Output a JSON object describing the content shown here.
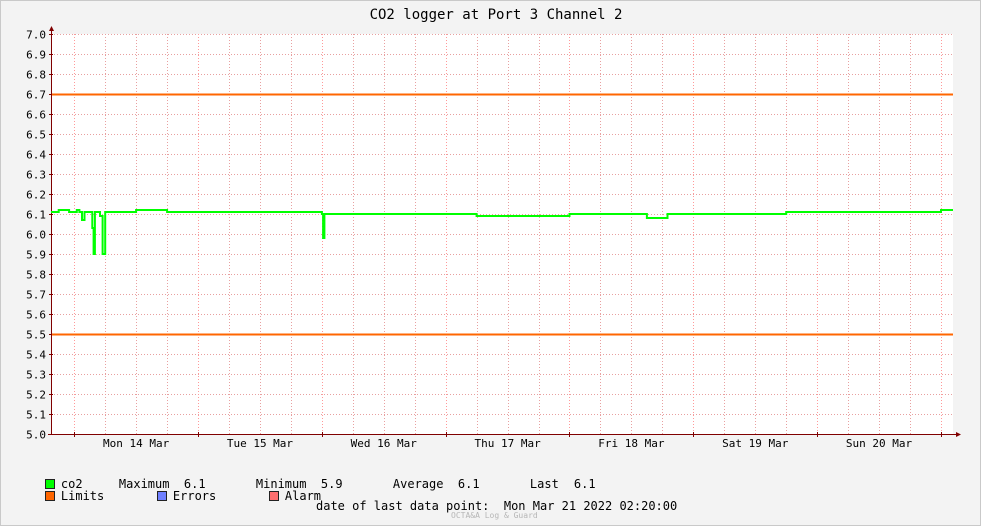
{
  "chart_data": {
    "type": "line",
    "title": "CO2 logger at Port 3 Channel 2",
    "xlabel": "",
    "ylabel": "",
    "ylim": [
      5.0,
      7.0
    ],
    "yticks": [
      "5.0",
      "5.1",
      "5.2",
      "5.3",
      "5.4",
      "5.5",
      "5.6",
      "5.7",
      "5.8",
      "5.9",
      "6.0",
      "6.1",
      "6.2",
      "6.3",
      "6.4",
      "6.5",
      "6.6",
      "6.7",
      "6.8",
      "6.9",
      "7.0"
    ],
    "xlim": [
      "2022-03-13 19:30",
      "2022-03-21 02:20"
    ],
    "xticks": [
      {
        "t": "2022-03-14 00:00",
        "label": "Mon 14 Mar"
      },
      {
        "t": "2022-03-15 00:00",
        "label": "Tue 15 Mar"
      },
      {
        "t": "2022-03-16 00:00",
        "label": "Wed 16 Mar"
      },
      {
        "t": "2022-03-17 00:00",
        "label": "Thu 17 Mar"
      },
      {
        "t": "2022-03-18 00:00",
        "label": "Fri 18 Mar"
      },
      {
        "t": "2022-03-19 00:00",
        "label": "Sat 19 Mar"
      },
      {
        "t": "2022-03-20 00:00",
        "label": "Sun 20 Mar"
      }
    ],
    "grid": true,
    "limits": [
      5.5,
      6.7
    ],
    "series": [
      {
        "name": "co2",
        "color": "#00ff00",
        "points": [
          [
            "2022-03-13 19:30",
            6.11
          ],
          [
            "2022-03-13 21:00",
            6.12
          ],
          [
            "2022-03-13 23:00",
            6.11
          ],
          [
            "2022-03-14 00:30",
            6.12
          ],
          [
            "2022-03-14 01:00",
            6.11
          ],
          [
            "2022-03-14 01:30",
            6.07
          ],
          [
            "2022-03-14 02:00",
            6.11
          ],
          [
            "2022-03-14 03:00",
            6.11
          ],
          [
            "2022-03-14 03:30",
            6.03
          ],
          [
            "2022-03-14 03:45",
            5.9
          ],
          [
            "2022-03-14 04:00",
            6.11
          ],
          [
            "2022-03-14 05:00",
            6.09
          ],
          [
            "2022-03-14 05:30",
            5.9
          ],
          [
            "2022-03-14 06:00",
            6.11
          ],
          [
            "2022-03-14 09:00",
            6.11
          ],
          [
            "2022-03-14 12:00",
            6.12
          ],
          [
            "2022-03-14 18:00",
            6.11
          ],
          [
            "2022-03-15 00:00",
            6.11
          ],
          [
            "2022-03-15 06:00",
            6.11
          ],
          [
            "2022-03-15 12:00",
            6.11
          ],
          [
            "2022-03-15 18:00",
            6.11
          ],
          [
            "2022-03-16 00:00",
            6.1
          ],
          [
            "2022-03-16 00:15",
            5.98
          ],
          [
            "2022-03-16 00:30",
            6.1
          ],
          [
            "2022-03-16 06:00",
            6.1
          ],
          [
            "2022-03-16 12:00",
            6.1
          ],
          [
            "2022-03-16 18:00",
            6.1
          ],
          [
            "2022-03-17 00:00",
            6.1
          ],
          [
            "2022-03-17 06:00",
            6.09
          ],
          [
            "2022-03-17 12:00",
            6.09
          ],
          [
            "2022-03-17 18:00",
            6.09
          ],
          [
            "2022-03-18 00:00",
            6.1
          ],
          [
            "2022-03-18 06:00",
            6.1
          ],
          [
            "2022-03-18 12:00",
            6.1
          ],
          [
            "2022-03-18 15:00",
            6.08
          ],
          [
            "2022-03-18 18:00",
            6.08
          ],
          [
            "2022-03-18 19:00",
            6.1
          ],
          [
            "2022-03-19 00:00",
            6.1
          ],
          [
            "2022-03-19 06:00",
            6.1
          ],
          [
            "2022-03-19 12:00",
            6.1
          ],
          [
            "2022-03-19 18:00",
            6.11
          ],
          [
            "2022-03-20 00:00",
            6.11
          ],
          [
            "2022-03-20 06:00",
            6.11
          ],
          [
            "2022-03-20 12:00",
            6.11
          ],
          [
            "2022-03-20 18:00",
            6.11
          ],
          [
            "2022-03-21 00:00",
            6.12
          ],
          [
            "2022-03-21 02:20",
            6.12
          ]
        ]
      }
    ]
  },
  "legend": {
    "series_name": "co2",
    "maximum_label": "Maximum",
    "maximum_value": "6.1",
    "minimum_label": "Minimum",
    "minimum_value": "5.9",
    "average_label": "Average",
    "average_value": "6.1",
    "last_label": "Last",
    "last_value": "6.1",
    "limits_label": "Limits",
    "errors_label": "Errors",
    "alarm_label": "Alarm"
  },
  "colors": {
    "series": "#00ff00",
    "limits": "#ff6600",
    "errors": "#6f7fff",
    "alarm": "#ff6f6f",
    "grid": "#e8a0a0",
    "axis": "#800000"
  },
  "footer": {
    "last_point_label": "date of last data point:",
    "last_point_value": "Mon Mar 21 2022 02:20:00",
    "credit": "OCTA&A Log & Guard"
  }
}
